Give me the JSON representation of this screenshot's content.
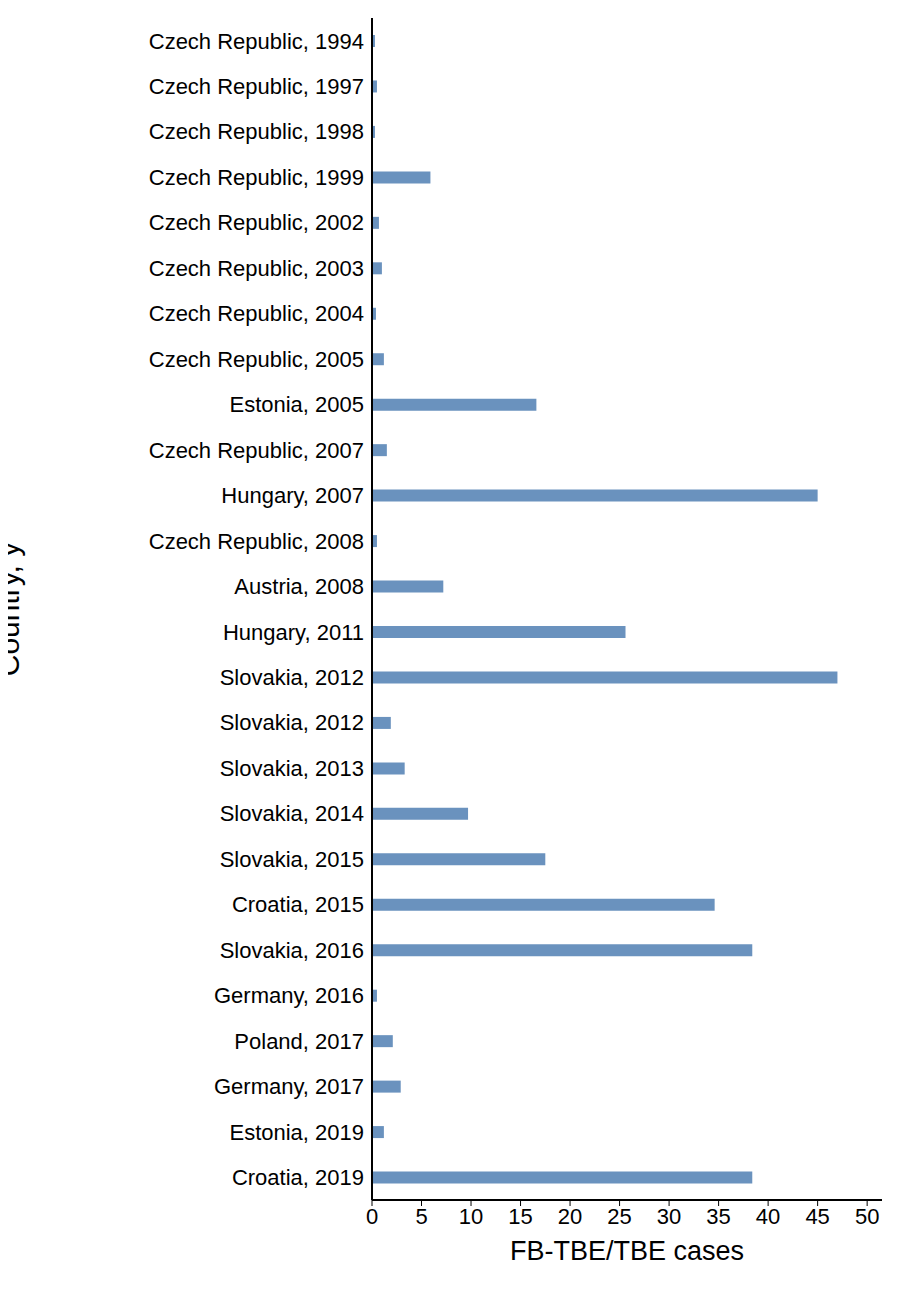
{
  "chart_data": {
    "type": "bar",
    "orientation": "horizontal",
    "x_label": "FB-TBE/TBE cases",
    "y_label": "Country, y",
    "categories": [
      "Czech Republic, 1994",
      "Czech Republic, 1997",
      "Czech Republic, 1998",
      "Czech Republic, 1999",
      "Czech Republic, 2002",
      "Czech Republic, 2003",
      "Czech Republic, 2004",
      "Czech Republic, 2005",
      "Estonia, 2005",
      "Czech Republic, 2007",
      "Hungary, 2007",
      "Czech Republic, 2008",
      "Austria, 2008",
      "Hungary, 2011",
      "Slovakia, 2012",
      "Slovakia, 2012",
      "Slovakia, 2013",
      "Slovakia, 2014",
      "Slovakia, 2015",
      "Croatia, 2015",
      "Slovakia, 2016",
      "Germany, 2016",
      "Poland, 2017",
      "Germany, 2017",
      "Estonia, 2019",
      "Croatia, 2019"
    ],
    "values": [
      0.3,
      0.5,
      0.3,
      5.9,
      0.7,
      1.0,
      0.4,
      1.2,
      16.6,
      1.5,
      45,
      0.5,
      7.2,
      25.6,
      47,
      1.9,
      3.3,
      9.7,
      17.5,
      34.6,
      38.4,
      0.5,
      2.1,
      2.9,
      1.2,
      38.4
    ],
    "color": "#6a92be",
    "xlim": [
      0,
      51.5
    ],
    "xticks": [
      0,
      5,
      10,
      15,
      20,
      25,
      30,
      35,
      40,
      45,
      50
    ],
    "grid": false
  }
}
